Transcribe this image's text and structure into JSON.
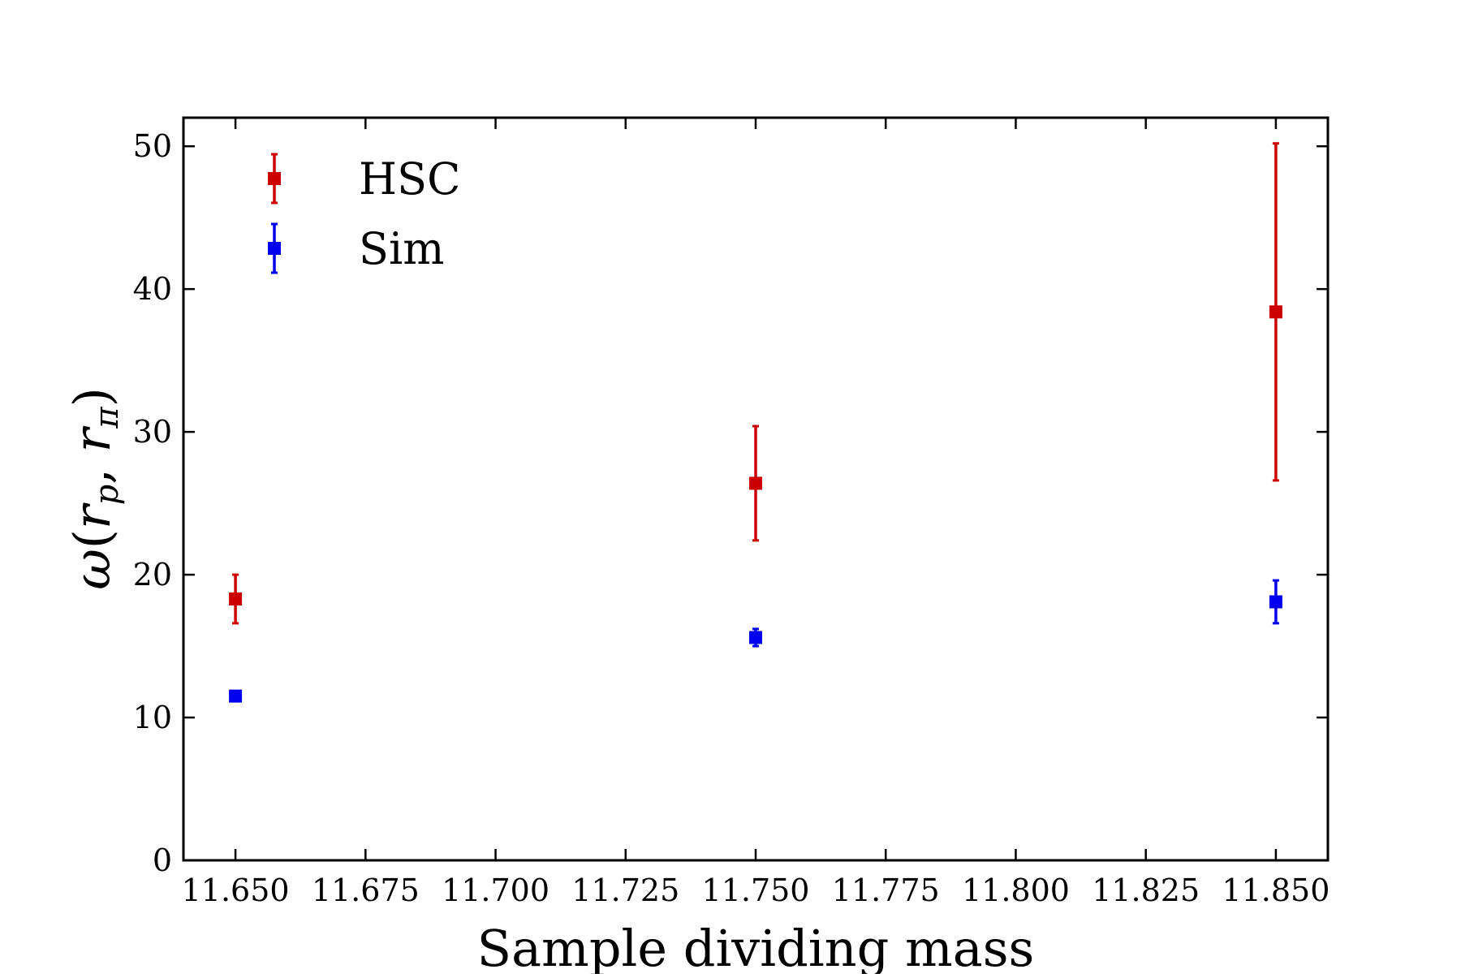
{
  "chart_data": {
    "type": "scatter",
    "title": "",
    "xlabel": "Sample dividing mass",
    "ylabel": "ω(r_p, r_π)",
    "ylabel_parts": {
      "omega": "ω",
      "open": "(",
      "r1": "r",
      "sub1": "p",
      "comma": ",",
      "r2": "r",
      "sub2": "π",
      "close": ")"
    },
    "xlim": [
      11.64,
      11.86
    ],
    "ylim": [
      0,
      52
    ],
    "x_ticks": [
      11.65,
      11.675,
      11.7,
      11.725,
      11.75,
      11.775,
      11.8,
      11.825,
      11.85
    ],
    "x_tick_labels": [
      "11.650",
      "11.675",
      "11.700",
      "11.725",
      "11.750",
      "11.775",
      "11.800",
      "11.825",
      "11.850"
    ],
    "y_ticks": [
      0,
      10,
      20,
      30,
      40,
      50
    ],
    "y_tick_labels": [
      "0",
      "10",
      "20",
      "30",
      "40",
      "50"
    ],
    "grid": false,
    "legend_position": "top-left",
    "series": [
      {
        "name": "HSC",
        "color": "#cc0000",
        "x": [
          11.65,
          11.75,
          11.85
        ],
        "y": [
          18.3,
          26.4,
          38.4
        ],
        "yerr": [
          1.7,
          4.0,
          11.8
        ]
      },
      {
        "name": "Sim",
        "color": "#0000ee",
        "x": [
          11.65,
          11.75,
          11.85
        ],
        "y": [
          11.5,
          15.6,
          18.1
        ],
        "yerr": [
          0.3,
          0.6,
          1.5
        ]
      }
    ]
  }
}
